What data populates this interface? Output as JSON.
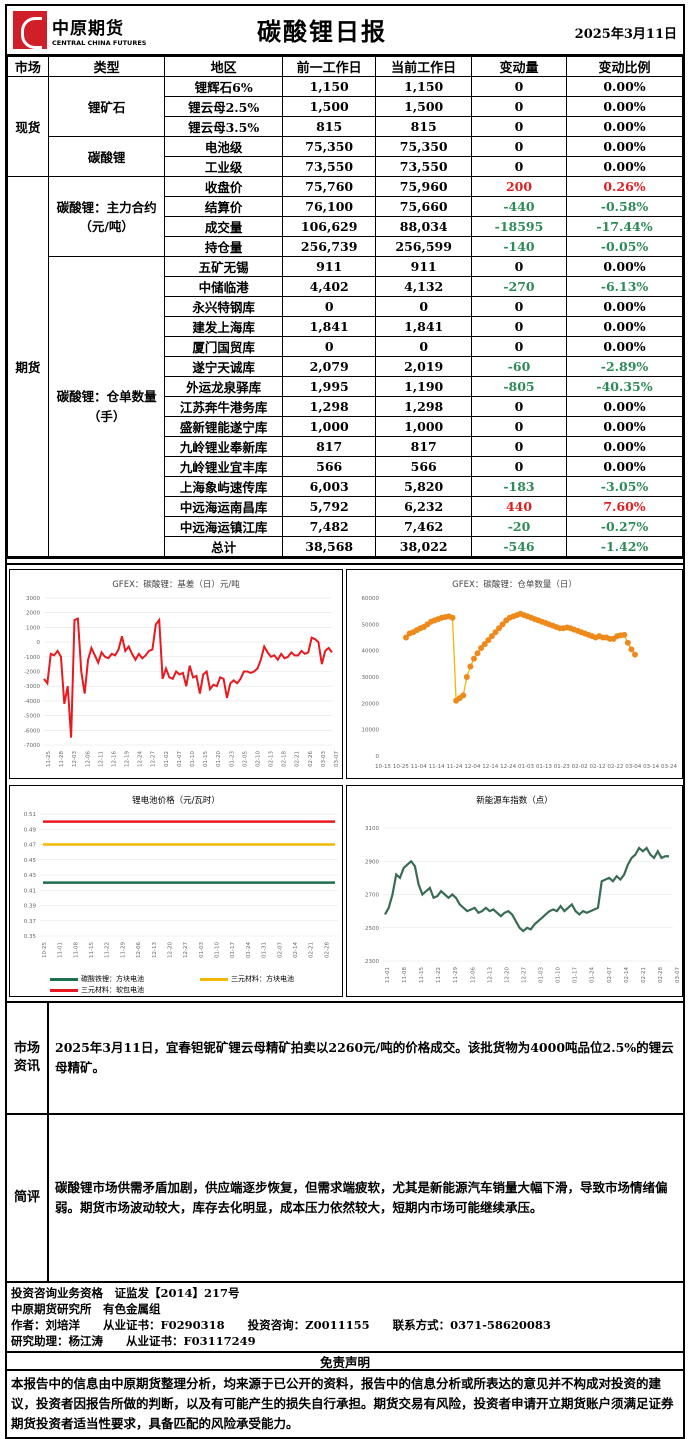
{
  "header": {
    "logo_cn": "中原期货",
    "logo_en": "CENTRAL CHINA FUTURES",
    "title": "碳酸锂日报",
    "date": "2025年3月11日"
  },
  "table": {
    "headers": [
      "市场",
      "类型",
      "地区",
      "前一工作日",
      "当前工作日",
      "变动量",
      "变动比例"
    ],
    "spot": {
      "market": "现货",
      "ore_type": "锂矿石",
      "carbonate_type": "碳酸锂",
      "rows": [
        [
          "锂辉石6%",
          "1,150",
          "1,150",
          "0",
          "0.00%"
        ],
        [
          "锂云母2.5%",
          "1,500",
          "1,500",
          "0",
          "0.00%"
        ],
        [
          "锂云母3.5%",
          "815",
          "815",
          "0",
          "0.00%"
        ],
        [
          "电池级",
          "75,350",
          "75,350",
          "0",
          "0.00%"
        ],
        [
          "工业级",
          "73,550",
          "73,550",
          "0",
          "0.00%"
        ]
      ]
    },
    "futures": {
      "market": "期货",
      "main_type": "碳酸锂：主力合约（元/吨）",
      "warrant_type": "碳酸锂：仓单数量（手）",
      "main_rows": [
        [
          "收盘价",
          "75,760",
          "75,960",
          "200",
          "0.26%"
        ],
        [
          "结算价",
          "76,100",
          "75,660",
          "-440",
          "-0.58%"
        ],
        [
          "成交量",
          "106,629",
          "88,034",
          "-18595",
          "-17.44%"
        ],
        [
          "持仓量",
          "256,739",
          "256,599",
          "-140",
          "-0.05%"
        ]
      ],
      "warrant_rows": [
        [
          "五矿无锡",
          "911",
          "911",
          "0",
          "0.00%"
        ],
        [
          "中储临港",
          "4,402",
          "4,132",
          "-270",
          "-6.13%"
        ],
        [
          "永兴特钢库",
          "0",
          "0",
          "0",
          "0.00%"
        ],
        [
          "建发上海库",
          "1,841",
          "1,841",
          "0",
          "0.00%"
        ],
        [
          "厦门国贸库",
          "0",
          "0",
          "0",
          "0.00%"
        ],
        [
          "遂宁天诚库",
          "2,079",
          "2,019",
          "-60",
          "-2.89%"
        ],
        [
          "外运龙泉驿库",
          "1,995",
          "1,190",
          "-805",
          "-40.35%"
        ],
        [
          "江苏奔牛港务库",
          "1,298",
          "1,298",
          "0",
          "0.00%"
        ],
        [
          "盛新锂能遂宁库",
          "1,000",
          "1,000",
          "0",
          "0.00%"
        ],
        [
          "九岭锂业奉新库",
          "817",
          "817",
          "0",
          "0.00%"
        ],
        [
          "九岭锂业宜丰库",
          "566",
          "566",
          "0",
          "0.00%"
        ],
        [
          "上海象屿速传库",
          "6,003",
          "5,820",
          "-183",
          "-3.05%"
        ],
        [
          "中远海运南昌库",
          "5,792",
          "6,232",
          "440",
          "7.60%"
        ],
        [
          "中远海运镇江库",
          "7,482",
          "7,462",
          "-20",
          "-0.27%"
        ],
        [
          "总计",
          "38,568",
          "38,022",
          "-546",
          "-1.42%"
        ]
      ]
    }
  },
  "colors": {
    "red": "#e02020",
    "green": "#2e8b57",
    "basis": "#e8191f",
    "warrant_line": "#f2b701",
    "warrant_pt": "#ee8a1c",
    "nev": "#3a6b53",
    "battery_lfp": "#1f6f4f",
    "battery_ncm_square": "#f2b701",
    "battery_ncm_soft": "#e8191f"
  },
  "chart_data": [
    {
      "type": "line",
      "title": "GFEX：碳酸锂：基差（日）元/吨",
      "ylim": [
        -7000,
        3000
      ],
      "yticks": [
        "3000",
        "2000",
        "1000",
        "0",
        "-1000",
        "-2000",
        "-3000",
        "-4000",
        "-5000",
        "-6000",
        "-7000"
      ],
      "xticks": [
        "11-25",
        "11-28",
        "12-03",
        "12-06",
        "12-11",
        "12-16",
        "12-19",
        "12-24",
        "12-27",
        "01-02",
        "01-07",
        "01-10",
        "01-15",
        "01-20",
        "01-23",
        "02-05",
        "02-10",
        "02-13",
        "02-18",
        "02-21",
        "02-26",
        "03-03",
        "03-07"
      ],
      "values": [
        -2500,
        -2800,
        -800,
        -900,
        -600,
        -1000,
        -4200,
        -3000,
        -6500,
        1500,
        1600,
        -2000,
        -3500,
        -1200,
        -400,
        -900,
        -1400,
        -700,
        -1000,
        -1100,
        -800,
        -900,
        -500,
        400,
        -600,
        -300,
        -800,
        -1200,
        -800,
        -1100,
        -900,
        -600,
        -500,
        1200,
        1500,
        -2500,
        -1800,
        -2400,
        -2500,
        -2000,
        -2200,
        -2100,
        -3000,
        -1600,
        -2400,
        -2300,
        -3500,
        -2200,
        -2000,
        -3200,
        -2900,
        -3000,
        -2400,
        -2500,
        -3800,
        -2800,
        -2600,
        -2800,
        -2500,
        -2000,
        -2000,
        -2100,
        -2000,
        -1800,
        -1200,
        -300,
        -700,
        -1000,
        -900,
        -1200,
        -800,
        -1100,
        -1000,
        -700,
        -900,
        -900,
        -600,
        -800,
        -700,
        300,
        200,
        0,
        -1500,
        -600,
        -400,
        -700
      ]
    },
    {
      "type": "scatter",
      "title": "GFEX：碳酸锂：仓单数量（日）",
      "ylim": [
        0,
        60000
      ],
      "yticks": [
        "60000",
        "50000",
        "40000",
        "30000",
        "20000",
        "10000",
        "0"
      ],
      "xticks": [
        "10-15",
        "10-25",
        "11-04",
        "11-14",
        "11-24",
        "12-04",
        "12-14",
        "12-24",
        "01-03",
        "01-13",
        "01-23",
        "02-02",
        "02-12",
        "02-22",
        "03-04",
        "03-14",
        "03-24"
      ],
      "values": [
        45000,
        46500,
        47000,
        47800,
        48500,
        49000,
        50000,
        51000,
        51500,
        52000,
        52500,
        52800,
        53000,
        52500,
        21000,
        22000,
        23000,
        30000,
        34000,
        37000,
        39000,
        41000,
        42500,
        44000,
        45500,
        47000,
        48500,
        50000,
        51500,
        52500,
        53000,
        53500,
        54000,
        53500,
        53000,
        52500,
        52000,
        51500,
        51000,
        50500,
        50000,
        49500,
        49000,
        48500,
        48500,
        48800,
        48500,
        48000,
        47500,
        47000,
        46500,
        46000,
        45500,
        45000,
        45500,
        45000,
        45000,
        44500,
        44500,
        45500,
        45800,
        46000,
        43000,
        40500,
        38500
      ]
    },
    {
      "type": "line",
      "title": "锂电池价格（元/瓦时）",
      "ylim": [
        0.35,
        0.51
      ],
      "yticks": [
        "0.51",
        "0.49",
        "0.47",
        "0.45",
        "0.43",
        "0.41",
        "0.39",
        "0.37",
        "0.35"
      ],
      "xticks": [
        "10-25",
        "11-01",
        "11-08",
        "11-15",
        "11-22",
        "11-29",
        "12-06",
        "12-13",
        "12-20",
        "12-27",
        "01-03",
        "01-10",
        "01-17",
        "01-24",
        "01-31",
        "02-07",
        "02-14",
        "02-21",
        "02-28",
        "03-07"
      ],
      "series": [
        {
          "name": "碳酸铁锂：方块电池",
          "values": [
            0.42,
            0.42
          ]
        },
        {
          "name": "三元材料：方块电池",
          "values": [
            0.47,
            0.47
          ]
        },
        {
          "name": "三元材料：软包电池",
          "values": [
            0.5,
            0.5
          ]
        }
      ]
    },
    {
      "type": "line",
      "title": "新能源车指数（点）",
      "ylim": [
        2300,
        3100
      ],
      "yticks": [
        "3100",
        "2900",
        "2700",
        "2500",
        "2300"
      ],
      "xticks": [
        "11-01",
        "11-08",
        "11-15",
        "11-22",
        "11-29",
        "12-06",
        "12-13",
        "12-20",
        "12-27",
        "01-03",
        "01-10",
        "01-17",
        "01-24",
        "02-07",
        "02-14",
        "02-21",
        "02-28",
        "03-07"
      ],
      "values": [
        2580,
        2620,
        2700,
        2820,
        2800,
        2860,
        2880,
        2900,
        2870,
        2760,
        2700,
        2720,
        2740,
        2680,
        2690,
        2720,
        2700,
        2680,
        2700,
        2680,
        2640,
        2620,
        2600,
        2610,
        2620,
        2590,
        2600,
        2620,
        2600,
        2610,
        2590,
        2570,
        2590,
        2600,
        2580,
        2540,
        2500,
        2480,
        2500,
        2490,
        2520,
        2540,
        2560,
        2580,
        2600,
        2610,
        2600,
        2630,
        2600,
        2620,
        2640,
        2600,
        2580,
        2600,
        2590,
        2600,
        2610,
        2620,
        2780,
        2790,
        2800,
        2780,
        2810,
        2790,
        2820,
        2880,
        2920,
        2940,
        2980,
        2960,
        2980,
        2940,
        2920,
        2960,
        2920,
        2930,
        2930
      ]
    }
  ],
  "info": {
    "label": "市场资讯",
    "text": "2025年3月11日，宜春钽铌矿锂云母精矿拍卖以2260元/吨的价格成交。该批货物为4000吨品位2.5%的锂云母精矿。"
  },
  "comment": {
    "label": "简评",
    "text": "碳酸锂市场供需矛盾加剧，供应端逐步恢复，但需求端疲软，尤其是新能源汽车销量大幅下滑，导致市场情绪偏弱。期货市场波动较大，库存去化明显，成本压力依然较大，短期内市场可能继续承压。"
  },
  "footer": {
    "line1": "投资咨询业务资格　证监发【2014】217号",
    "line2": "中原期货研究所　有色金属组",
    "line3": "作者：刘培洋　　从业证书：F0290318　　投资咨询：Z0011155　　联系方式：0371-58620083",
    "line4": "研究助理：杨江涛　　从业证书：F03117249"
  },
  "disclaimer": {
    "title": "免责声明",
    "text": "本报告中的信息由中原期货整理分析，均来源于已公开的资料，报告中的信息分析或所表达的意见并不构成对投资的建议，投资者因报告所做的判断，以及有可能产生的损失自行承担。期货交易有风险，投资者申请开立期货账户须满足证券期货投资者适当性要求，具备匹配的风险承受能力。"
  }
}
